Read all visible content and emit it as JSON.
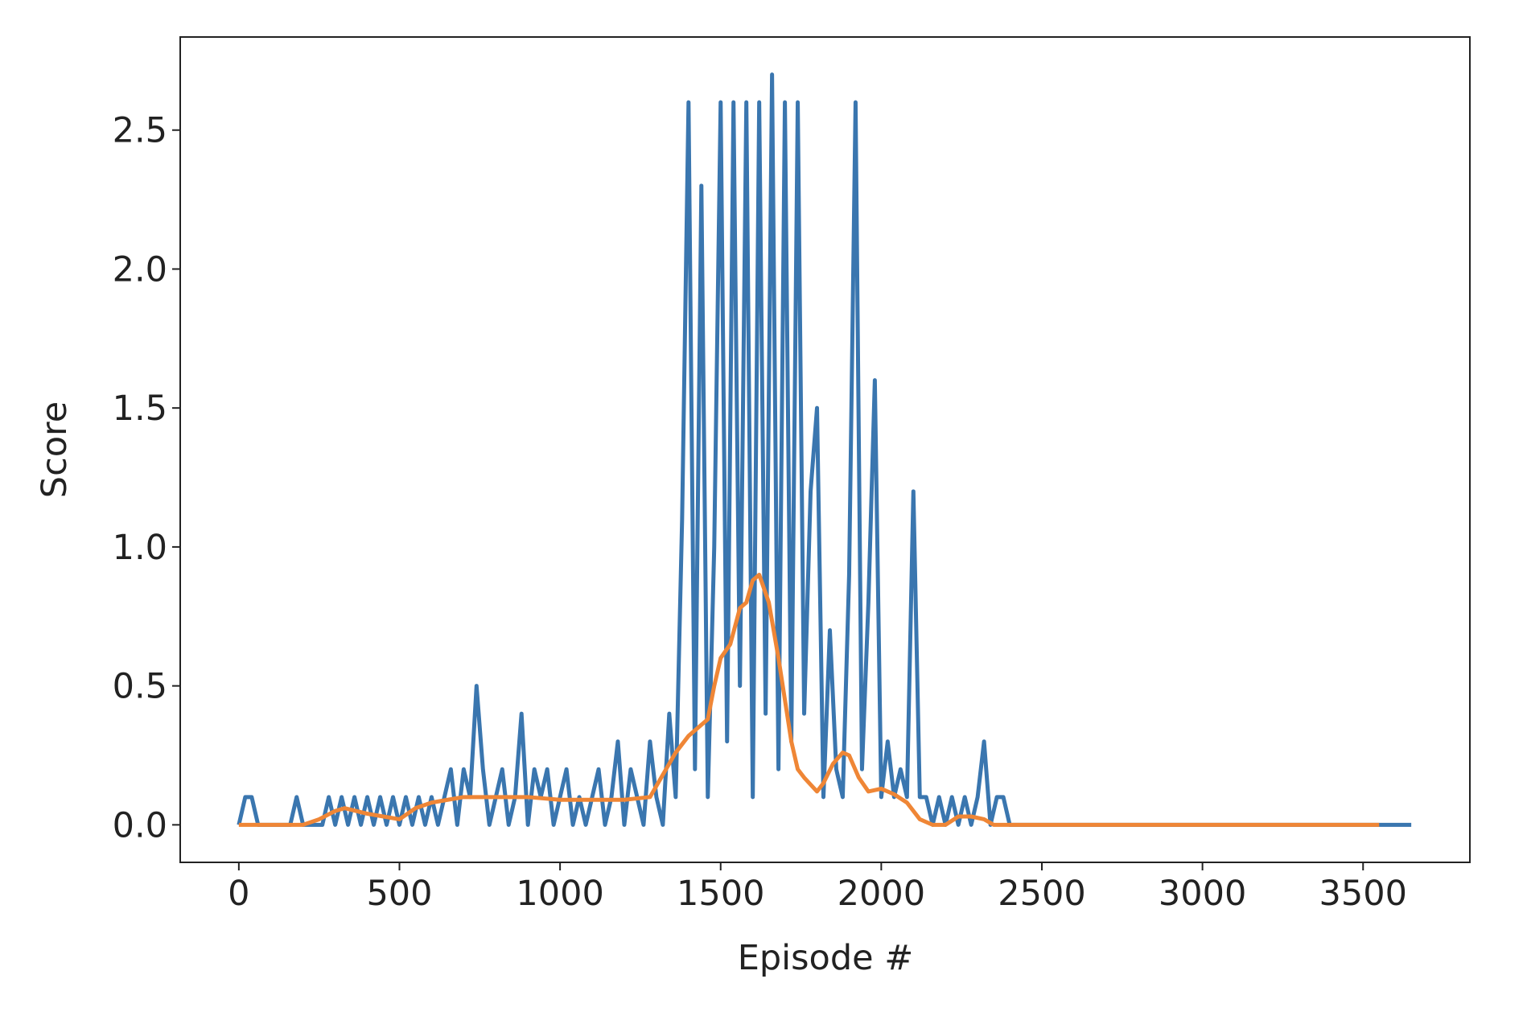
{
  "chart_data": {
    "type": "line",
    "xlabel": "Episode #",
    "ylabel": "Score",
    "xlim": [
      -182.5,
      3832.5
    ],
    "ylim": [
      -0.135,
      2.835
    ],
    "xticks": [
      0,
      500,
      1000,
      1500,
      2000,
      2500,
      3000,
      3500
    ],
    "yticks": [
      {
        "value": 0,
        "label": "0.0"
      },
      {
        "value": 0.5,
        "label": "0.5"
      },
      {
        "value": 1,
        "label": "1.0"
      },
      {
        "value": 1.5,
        "label": "1.5"
      },
      {
        "value": 2,
        "label": "2.0"
      },
      {
        "value": 2.5,
        "label": "2.5"
      }
    ],
    "series": [
      {
        "color": "#3a76af",
        "x": [
          0,
          20,
          40,
          60,
          80,
          100,
          120,
          140,
          160,
          180,
          200,
          220,
          240,
          260,
          280,
          300,
          320,
          340,
          360,
          380,
          400,
          420,
          440,
          460,
          480,
          500,
          520,
          540,
          560,
          580,
          600,
          620,
          640,
          660,
          680,
          700,
          720,
          740,
          760,
          780,
          800,
          820,
          840,
          860,
          880,
          900,
          920,
          940,
          960,
          980,
          1000,
          1020,
          1040,
          1060,
          1080,
          1100,
          1120,
          1140,
          1160,
          1180,
          1200,
          1220,
          1240,
          1260,
          1280,
          1300,
          1320,
          1340,
          1360,
          1380,
          1400,
          1420,
          1440,
          1460,
          1480,
          1500,
          1520,
          1540,
          1560,
          1580,
          1600,
          1620,
          1640,
          1660,
          1680,
          1700,
          1720,
          1740,
          1760,
          1780,
          1800,
          1820,
          1840,
          1860,
          1880,
          1900,
          1920,
          1940,
          1960,
          1980,
          2000,
          2020,
          2040,
          2060,
          2080,
          2100,
          2120,
          2140,
          2160,
          2180,
          2200,
          2220,
          2240,
          2260,
          2280,
          2300,
          2320,
          2340,
          2360,
          2380,
          2400,
          3650
        ],
        "values": [
          0,
          0.1,
          0.1,
          0,
          0,
          0,
          0,
          0,
          0,
          0.1,
          0,
          0,
          0,
          0,
          0.1,
          0,
          0.1,
          0,
          0.1,
          0,
          0.1,
          0,
          0.1,
          0,
          0.1,
          0,
          0.1,
          0,
          0.1,
          0,
          0.1,
          0,
          0.1,
          0.2,
          0,
          0.2,
          0.1,
          0.5,
          0.2,
          0,
          0.1,
          0.2,
          0,
          0.1,
          0.4,
          0,
          0.2,
          0.1,
          0.2,
          0,
          0.1,
          0.2,
          0,
          0.1,
          0,
          0.1,
          0.2,
          0,
          0.1,
          0.3,
          0,
          0.2,
          0.1,
          0,
          0.3,
          0.1,
          0,
          0.4,
          0.1,
          1.1,
          2.6,
          0.2,
          2.3,
          0.1,
          1.0,
          2.6,
          0.3,
          2.6,
          0.5,
          2.6,
          0.1,
          2.6,
          0.4,
          2.7,
          0.2,
          2.6,
          0.3,
          2.6,
          0.4,
          1.2,
          1.5,
          0.1,
          0.7,
          0.2,
          0.1,
          0.9,
          2.6,
          0.2,
          0.8,
          1.6,
          0.1,
          0.3,
          0.1,
          0.2,
          0.1,
          1.2,
          0.1,
          0.1,
          0,
          0.1,
          0,
          0.1,
          0,
          0.1,
          0,
          0.1,
          0.3,
          0,
          0.1,
          0.1,
          0,
          0
        ]
      },
      {
        "color": "#ef8636",
        "x": [
          0,
          100,
          200,
          250,
          300,
          330,
          400,
          450,
          500,
          550,
          600,
          650,
          700,
          750,
          800,
          850,
          900,
          1000,
          1100,
          1200,
          1280,
          1320,
          1360,
          1400,
          1430,
          1460,
          1480,
          1500,
          1530,
          1560,
          1580,
          1600,
          1620,
          1650,
          1680,
          1700,
          1720,
          1740,
          1760,
          1800,
          1820,
          1850,
          1880,
          1900,
          1930,
          1960,
          2000,
          2040,
          2080,
          2120,
          2160,
          2200,
          2240,
          2280,
          2320,
          2350,
          3550
        ],
        "values": [
          0,
          0,
          0,
          0.02,
          0.05,
          0.06,
          0.04,
          0.03,
          0.02,
          0.06,
          0.08,
          0.09,
          0.1,
          0.1,
          0.1,
          0.1,
          0.1,
          0.09,
          0.09,
          0.09,
          0.1,
          0.18,
          0.26,
          0.32,
          0.35,
          0.38,
          0.5,
          0.6,
          0.65,
          0.78,
          0.8,
          0.88,
          0.9,
          0.8,
          0.6,
          0.45,
          0.3,
          0.2,
          0.17,
          0.12,
          0.15,
          0.22,
          0.26,
          0.25,
          0.17,
          0.12,
          0.13,
          0.11,
          0.08,
          0.02,
          0,
          0,
          0.03,
          0.03,
          0.02,
          0,
          0
        ]
      }
    ]
  }
}
